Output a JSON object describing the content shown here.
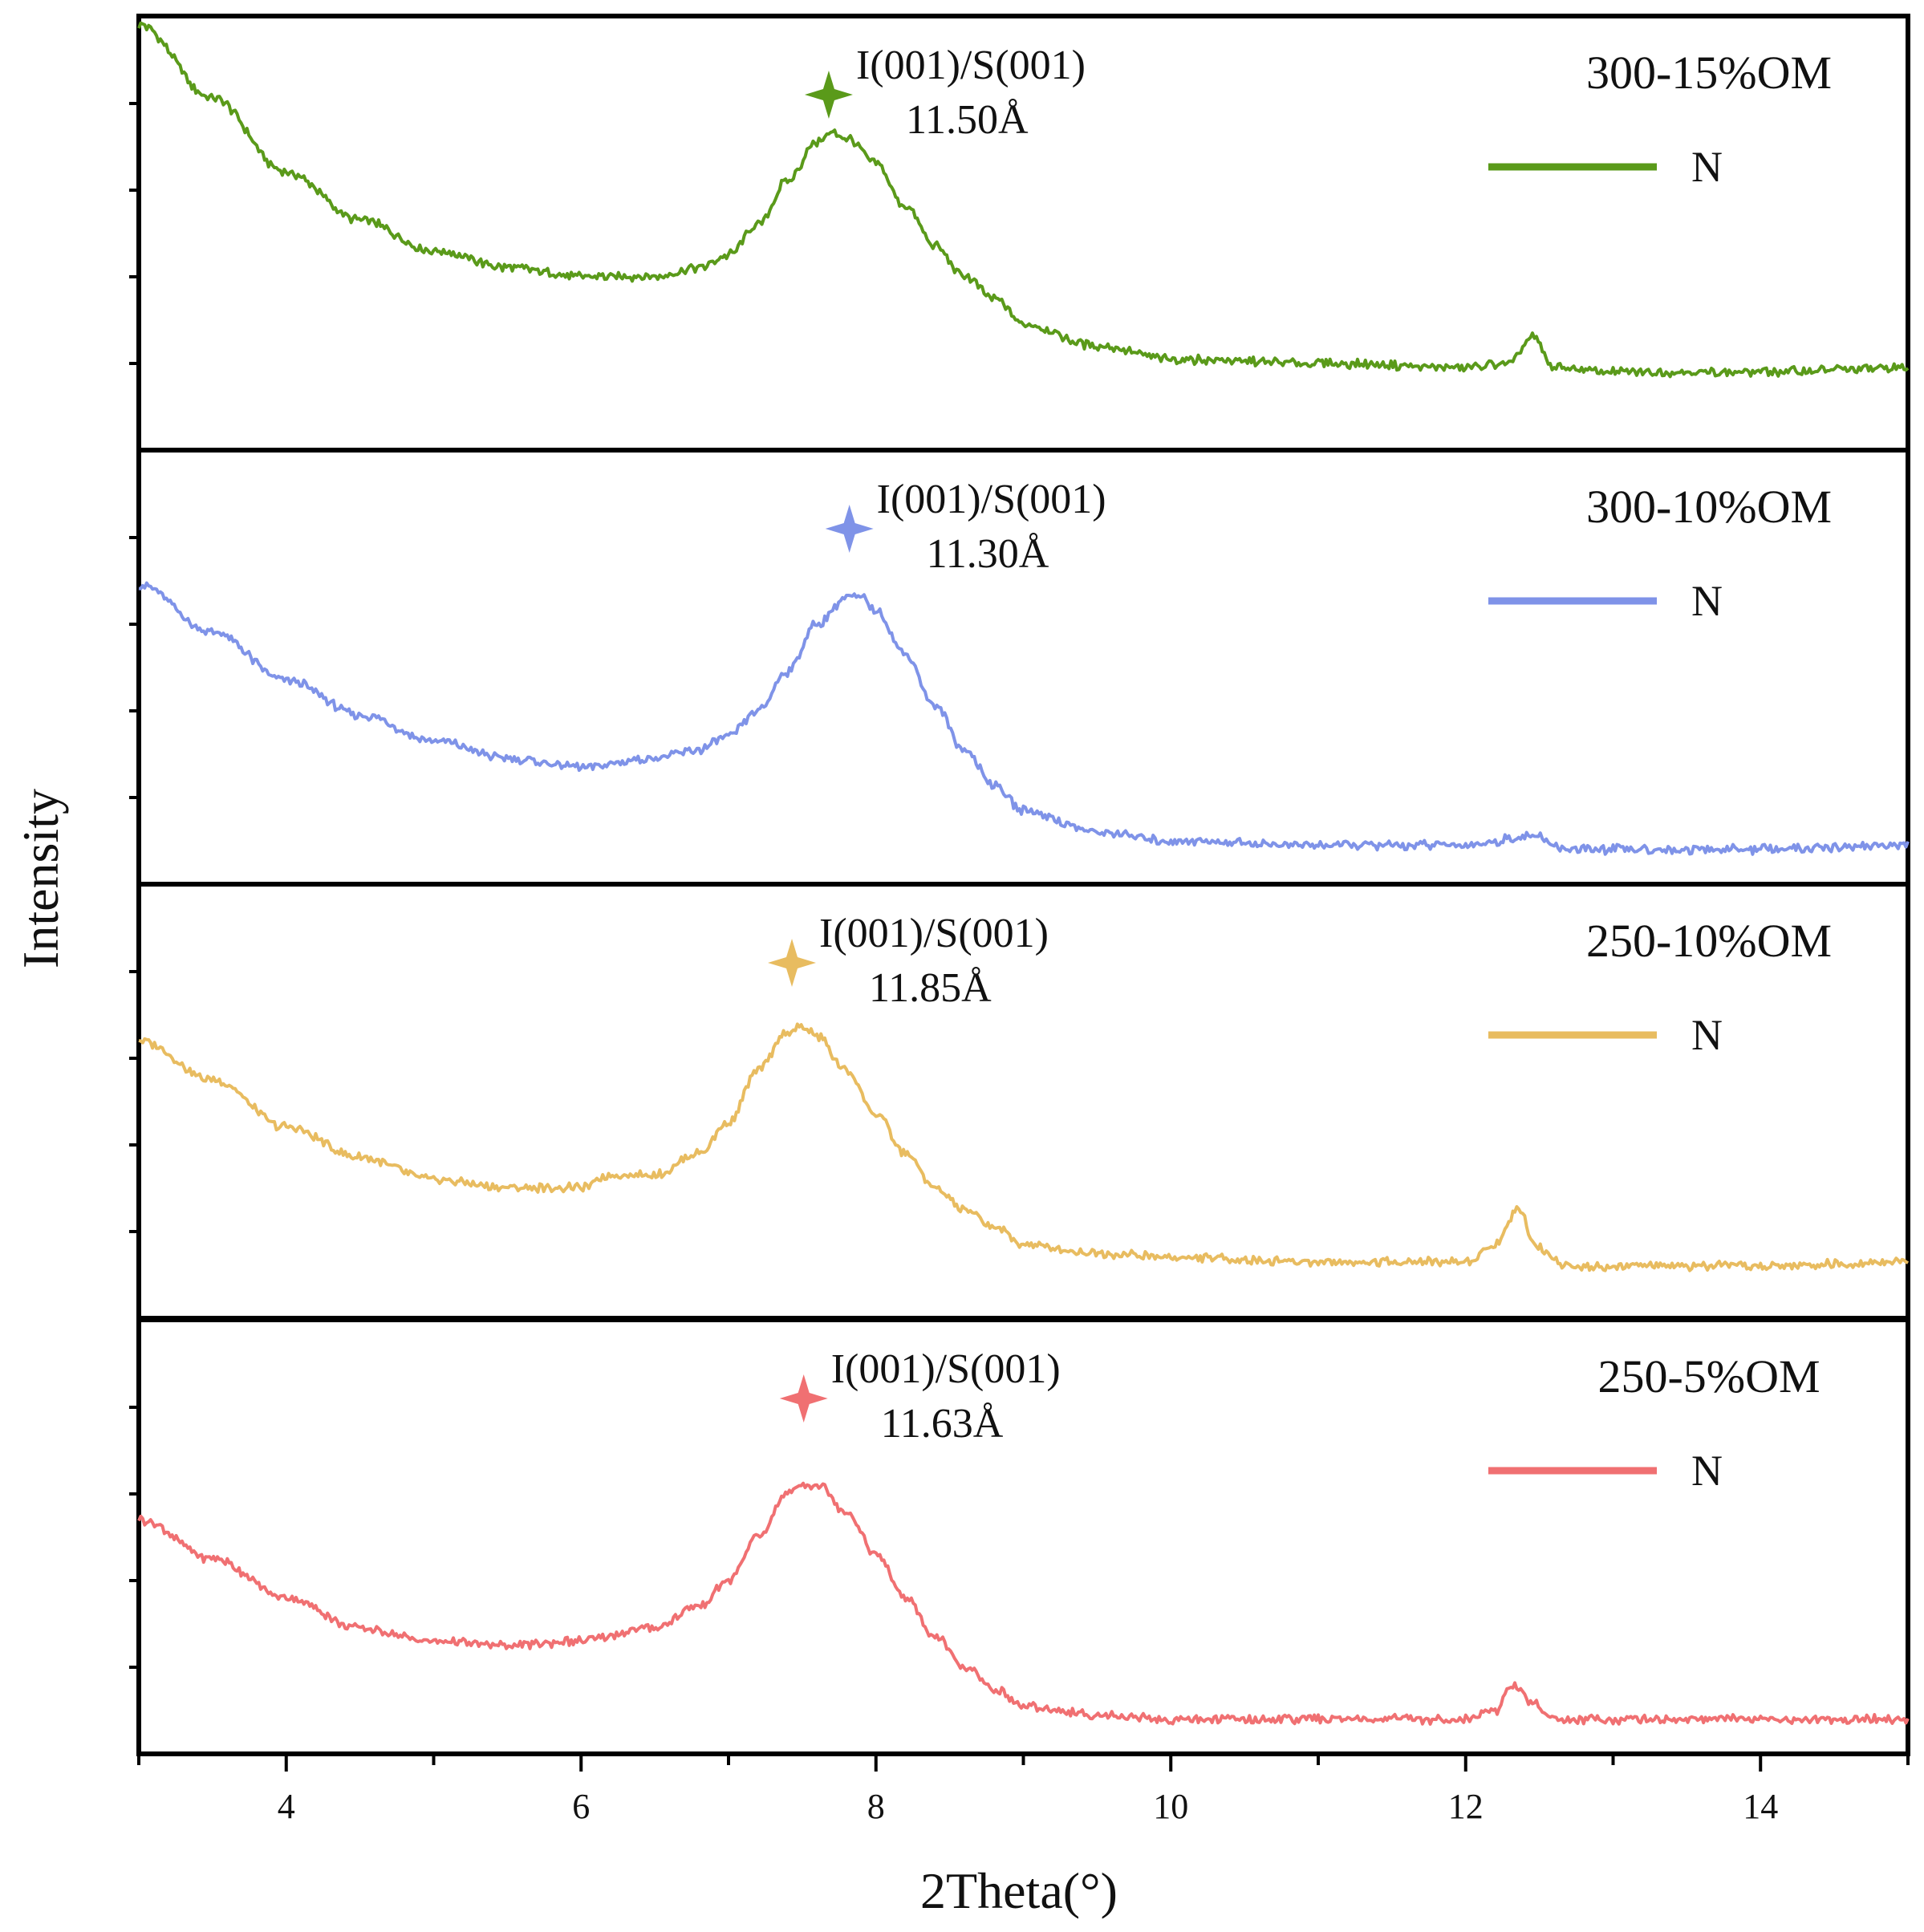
{
  "chart_data": {
    "type": "line",
    "title": "",
    "xlabel": "2Theta(°)",
    "ylabel": "Intensity",
    "xlim": [
      3,
      15
    ],
    "xticks": [
      4,
      6,
      8,
      10,
      12,
      14
    ],
    "ylim": [
      0,
      1
    ],
    "grid": false,
    "legend_position": "top-right of each panel",
    "panels": [
      {
        "name": "300-15%OM",
        "color": "#5a9a1a",
        "legend": "N",
        "annotation": {
          "label": "I(001)/S(001)",
          "value": "11.50Å",
          "x": 7.68
        },
        "series": {
          "x": [
            3.0,
            3.5,
            4.0,
            4.5,
            5.0,
            5.5,
            6.0,
            6.5,
            6.8,
            7.0,
            7.2,
            7.4,
            7.6,
            7.7,
            7.8,
            8.0,
            8.2,
            8.4,
            8.6,
            8.8,
            9.0,
            9.5,
            10.0,
            11.0,
            12.0,
            12.3,
            12.45,
            12.6,
            13.0,
            14.0,
            15.0
          ],
          "y": [
            0.98,
            0.81,
            0.64,
            0.53,
            0.46,
            0.42,
            0.4,
            0.4,
            0.42,
            0.45,
            0.52,
            0.62,
            0.71,
            0.73,
            0.72,
            0.66,
            0.56,
            0.47,
            0.4,
            0.35,
            0.29,
            0.24,
            0.21,
            0.2,
            0.19,
            0.2,
            0.26,
            0.19,
            0.18,
            0.18,
            0.19
          ]
        }
      },
      {
        "name": "300-10%OM",
        "color": "#7f93e8",
        "legend": "N",
        "annotation": {
          "label": "I(001)/S(001)",
          "value": "11.30Å",
          "x": 7.82
        },
        "series": {
          "x": [
            3.0,
            3.5,
            4.0,
            4.5,
            5.0,
            5.5,
            6.0,
            6.5,
            6.8,
            7.0,
            7.2,
            7.4,
            7.6,
            7.8,
            7.9,
            8.0,
            8.2,
            8.4,
            8.6,
            8.8,
            9.0,
            9.5,
            10.0,
            11.0,
            12.0,
            12.45,
            12.7,
            14.0,
            15.0
          ],
          "y": [
            0.69,
            0.58,
            0.47,
            0.39,
            0.33,
            0.29,
            0.27,
            0.29,
            0.31,
            0.34,
            0.4,
            0.49,
            0.6,
            0.66,
            0.66,
            0.63,
            0.53,
            0.41,
            0.31,
            0.23,
            0.17,
            0.12,
            0.1,
            0.09,
            0.09,
            0.11,
            0.08,
            0.08,
            0.09
          ]
        }
      },
      {
        "name": "250-10%OM",
        "color": "#e8bc60",
        "legend": "N",
        "annotation": {
          "label": "I(001)/S(001)",
          "value": "11.85Å",
          "x": 7.43
        },
        "series": {
          "x": [
            3.0,
            3.5,
            4.0,
            4.5,
            5.0,
            5.5,
            6.0,
            6.2,
            6.5,
            6.8,
            7.0,
            7.2,
            7.4,
            7.5,
            7.6,
            7.8,
            8.0,
            8.2,
            8.4,
            8.6,
            8.8,
            9.0,
            9.5,
            10.0,
            11.0,
            12.0,
            12.2,
            12.35,
            12.5,
            12.7,
            14.0,
            15.0
          ],
          "y": [
            0.64,
            0.55,
            0.44,
            0.37,
            0.32,
            0.3,
            0.3,
            0.33,
            0.33,
            0.38,
            0.45,
            0.57,
            0.66,
            0.67,
            0.65,
            0.57,
            0.47,
            0.38,
            0.3,
            0.25,
            0.21,
            0.17,
            0.15,
            0.14,
            0.13,
            0.13,
            0.17,
            0.25,
            0.16,
            0.12,
            0.12,
            0.13
          ]
        }
      },
      {
        "name": "250-5%OM",
        "color": "#f07072",
        "legend": "N",
        "annotation": {
          "label": "I(001)/S(001)",
          "value": "11.63Å",
          "x": 7.51
        },
        "series": {
          "x": [
            3.0,
            3.5,
            4.0,
            4.5,
            5.0,
            5.5,
            6.0,
            6.5,
            6.8,
            7.0,
            7.2,
            7.4,
            7.5,
            7.6,
            7.8,
            8.0,
            8.2,
            8.4,
            8.6,
            8.8,
            9.0,
            9.5,
            10.0,
            11.0,
            12.0,
            12.2,
            12.32,
            12.45,
            12.6,
            14.0,
            15.0
          ],
          "y": [
            0.54,
            0.45,
            0.36,
            0.29,
            0.26,
            0.25,
            0.26,
            0.29,
            0.34,
            0.4,
            0.5,
            0.6,
            0.62,
            0.62,
            0.56,
            0.46,
            0.36,
            0.27,
            0.2,
            0.15,
            0.11,
            0.09,
            0.08,
            0.08,
            0.08,
            0.1,
            0.16,
            0.12,
            0.08,
            0.08,
            0.08
          ]
        }
      }
    ]
  }
}
